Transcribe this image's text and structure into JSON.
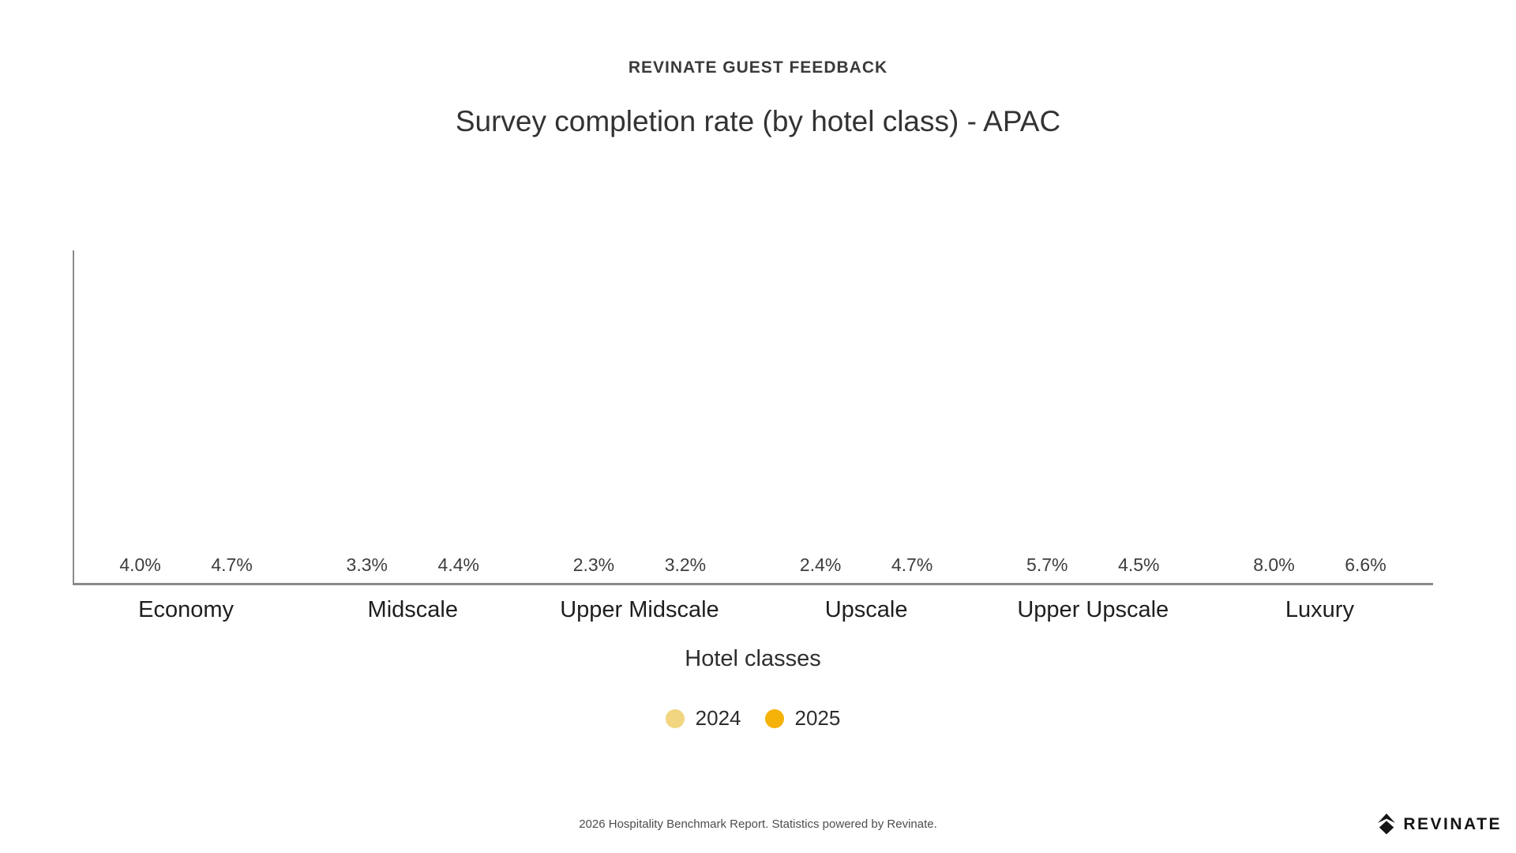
{
  "chart_data": {
    "type": "bar",
    "eyebrow": "REVINATE GUEST FEEDBACK",
    "title": "Survey completion rate (by hotel class) - APAC",
    "categories": [
      "Economy",
      "Midscale",
      "Upper Midscale",
      "Upscale",
      "Upper Upscale",
      "Luxury"
    ],
    "series": [
      {
        "name": "2024",
        "color": "#F2D580",
        "values": [
          4.0,
          3.3,
          2.3,
          2.4,
          5.7,
          8.0
        ]
      },
      {
        "name": "2025",
        "color": "#F5B208",
        "values": [
          4.7,
          4.4,
          3.2,
          4.7,
          4.5,
          6.6
        ]
      }
    ],
    "value_suffix": "%",
    "xlabel": "Hotel classes",
    "ylabel": "",
    "ylim": [
      0,
      10
    ],
    "grid": false,
    "legend_position": "bottom",
    "axis_color": "#8a8a8a"
  },
  "footer": {
    "note": "2026 Hospitality Benchmark Report. Statistics powered by Revinate.",
    "brand_text": "REVINATE"
  }
}
